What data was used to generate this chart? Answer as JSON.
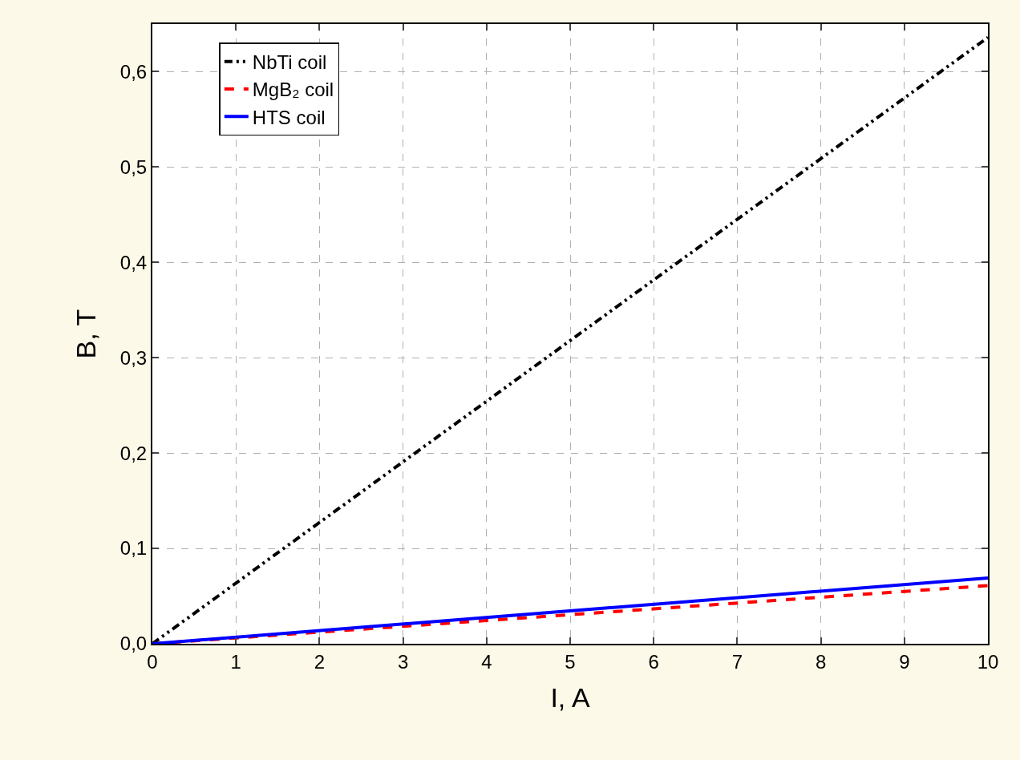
{
  "chart_data": {
    "type": "line",
    "xlabel": "I, A",
    "ylabel": "B, T",
    "x": [
      0,
      10
    ],
    "series": [
      {
        "name": "NbTi coil",
        "color": "#000000",
        "values": [
          0,
          0.636
        ],
        "line_style": "dashdot"
      },
      {
        "name": "MgB₂ coil",
        "color": "#ff0000",
        "values": [
          0,
          0.061
        ],
        "line_style": "dashed"
      },
      {
        "name": "HTS coil",
        "color": "#0000ff",
        "values": [
          0,
          0.069
        ],
        "line_style": "solid"
      }
    ],
    "xlim": [
      0,
      10
    ],
    "xticks": [
      0,
      1,
      2,
      3,
      4,
      5,
      6,
      7,
      8,
      9,
      10
    ],
    "ylim": [
      0,
      0.65
    ],
    "yticks": [
      {
        "value": 0,
        "label": "0,0"
      },
      {
        "value": 0.1,
        "label": "0,1"
      },
      {
        "value": 0.2,
        "label": "0,2"
      },
      {
        "value": 0.3,
        "label": "0,3"
      },
      {
        "value": 0.4,
        "label": "0,4"
      },
      {
        "value": 0.5,
        "label": "0,5"
      },
      {
        "value": 0.6,
        "label": "0,6"
      }
    ],
    "grid": true,
    "legend": "top left",
    "marker": "none"
  }
}
